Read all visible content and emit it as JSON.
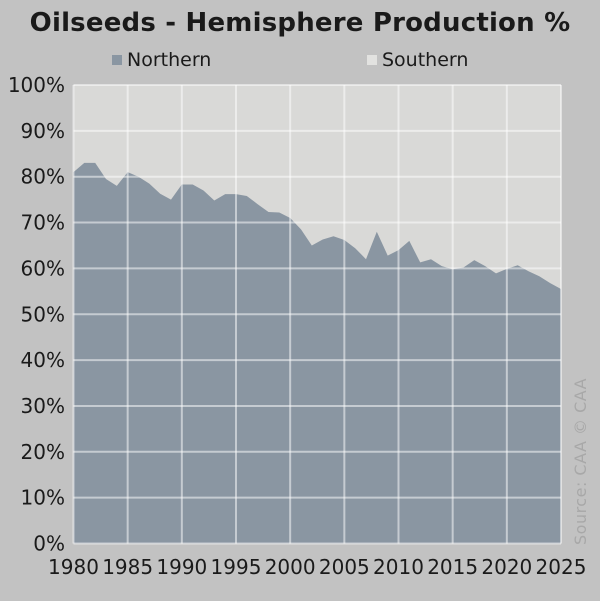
{
  "header": {
    "title": "Oilseeds - Hemisphere Production %"
  },
  "legend": {
    "items": [
      {
        "label": "Northern",
        "color": "#8a96a2"
      },
      {
        "label": "Southern",
        "color": "#e2e2e0"
      }
    ]
  },
  "source_note": "Source: CAA  © CAA",
  "colors": {
    "page_background": "#c2c2c2",
    "northern_fill": "#8a96a2",
    "southern_fill": "#d9d9d7",
    "gridline": "rgba(255,255,255,0.5)",
    "axis_text": "#1a1a1a",
    "source_text": "#a8a8a8"
  },
  "chart_data": {
    "type": "area",
    "stacked": true,
    "title": "Oilseeds - Hemisphere Production %",
    "xlabel": "",
    "ylabel": "",
    "ylim": [
      0,
      100
    ],
    "grid": true,
    "legend_position": "top",
    "x": [
      1980,
      1981,
      1982,
      1983,
      1984,
      1985,
      1986,
      1987,
      1988,
      1989,
      1990,
      1991,
      1992,
      1993,
      1994,
      1995,
      1996,
      1997,
      1998,
      1999,
      2000,
      2001,
      2002,
      2003,
      2004,
      2005,
      2006,
      2007,
      2008,
      2009,
      2010,
      2011,
      2012,
      2013,
      2014,
      2015,
      2016,
      2017,
      2018,
      2019,
      2020,
      2021,
      2022,
      2023,
      2024,
      2025
    ],
    "x_tick_labels": [
      "1980",
      "1985",
      "1990",
      "1995",
      "2000",
      "2005",
      "2010",
      "2015",
      "2020",
      "2025"
    ],
    "x_tick_values": [
      1980,
      1985,
      1990,
      1995,
      2000,
      2005,
      2010,
      2015,
      2020,
      2025
    ],
    "y_tick_labels": [
      "0%",
      "10%",
      "20%",
      "30%",
      "40%",
      "50%",
      "60%",
      "70%",
      "80%",
      "90%",
      "100%"
    ],
    "y_tick_values": [
      0,
      10,
      20,
      30,
      40,
      50,
      60,
      70,
      80,
      90,
      100
    ],
    "series": [
      {
        "name": "Northern",
        "color": "#8a96a2",
        "values": [
          81,
          83,
          83,
          79.5,
          78,
          81,
          80,
          78.5,
          76.3,
          75,
          78.3,
          78.3,
          77,
          74.8,
          76.2,
          76.2,
          75.8,
          74,
          72.3,
          72.2,
          71,
          68.5,
          65,
          66.3,
          67,
          66.2,
          64.4,
          62,
          68,
          62.8,
          64,
          66,
          61.3,
          62,
          60.5,
          59.8,
          60.2,
          61.8,
          60.5,
          58.9,
          59.9,
          60.7,
          59.4,
          58.3,
          56.8,
          55.5
        ]
      },
      {
        "name": "Southern",
        "color": "#d9d9d7",
        "values": [
          19,
          17,
          17,
          20.5,
          22,
          19,
          20,
          21.5,
          23.7,
          25,
          21.7,
          21.7,
          23,
          25.2,
          23.8,
          23.8,
          24.2,
          26,
          27.7,
          27.8,
          29,
          31.5,
          35,
          33.7,
          33,
          33.8,
          35.6,
          38,
          32,
          37.2,
          36,
          34,
          38.7,
          38,
          39.5,
          40.2,
          39.8,
          38.2,
          39.5,
          41.1,
          40.1,
          39.3,
          40.6,
          41.7,
          43.2,
          44.5
        ]
      }
    ]
  }
}
